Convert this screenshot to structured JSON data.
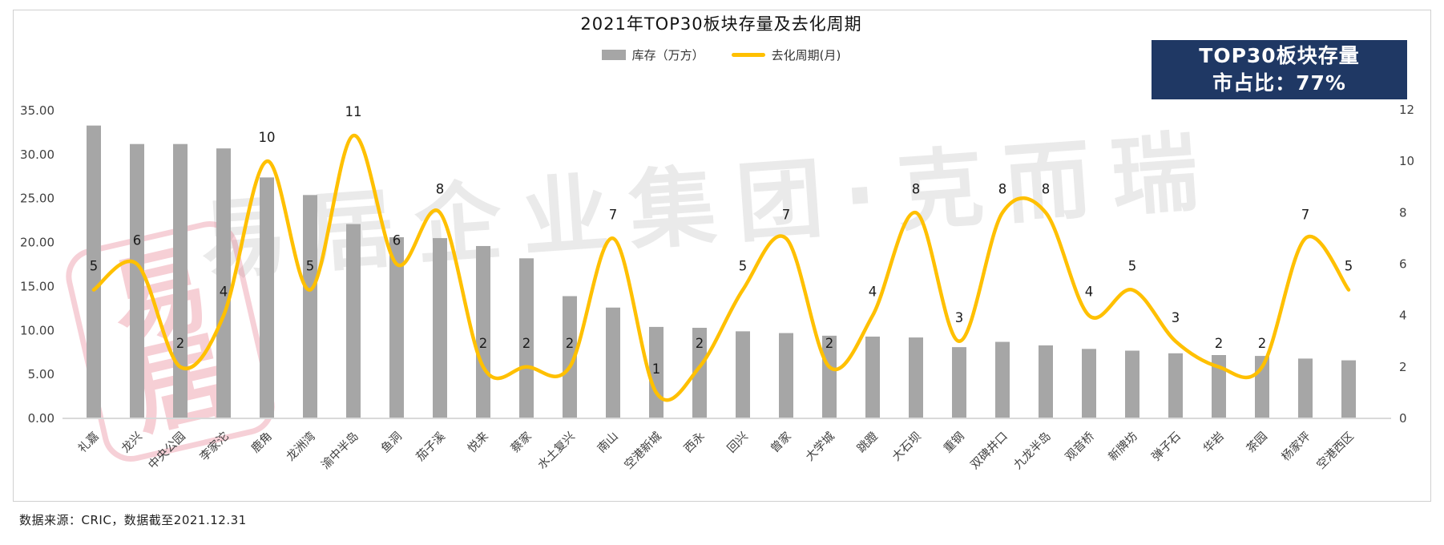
{
  "title": "2021年TOP30板块存量及去化周期",
  "legend": [
    {
      "label": "库存（万方）",
      "type": "bar",
      "color": "#A6A6A6"
    },
    {
      "label": "去化周期(月)",
      "type": "line",
      "color": "#FFC000"
    }
  ],
  "badge": {
    "line1": "TOP30板块存量",
    "line2": "市占比：77%",
    "bg": "#1F3864",
    "fg": "#FFFFFF"
  },
  "watermark": {
    "text": "易居企业集团·克而瑞",
    "seal_char1": "易",
    "seal_char2": "居"
  },
  "source_note": "数据来源：CRIC，数据截至2021.12.31",
  "colors": {
    "bar": "#A6A6A6",
    "line": "#FFC000",
    "axis_text": "#404040",
    "axis_line": "#d9d9d9",
    "data_label": "#1a1a1a"
  },
  "chart_data": {
    "type": "bar",
    "subtype": "bar+smooth-line combo, dual axis",
    "title": "2021年TOP30板块存量及去化周期",
    "categories": [
      "礼嘉",
      "龙兴",
      "中央公园",
      "李家沱",
      "鹿角",
      "龙洲湾",
      "渝中半岛",
      "鱼洞",
      "茄子溪",
      "悦来",
      "蔡家",
      "水土复兴",
      "南山",
      "空港新城",
      "西永",
      "回兴",
      "曾家",
      "大学城",
      "跳蹬",
      "大石坝",
      "重钢",
      "双碑井口",
      "九龙半岛",
      "观音桥",
      "新牌坊",
      "弹子石",
      "华岩",
      "茶园",
      "杨家坪",
      "空港西区"
    ],
    "series": [
      {
        "name": "库存（万方）",
        "type": "bar",
        "axis": "left",
        "color": "#A6A6A6",
        "values": [
          33.3,
          31.2,
          31.2,
          30.7,
          27.4,
          25.4,
          22.1,
          20.6,
          20.5,
          19.6,
          18.2,
          13.9,
          12.6,
          10.4,
          10.3,
          9.9,
          9.7,
          9.4,
          9.3,
          9.2,
          8.1,
          8.7,
          8.3,
          7.9,
          7.7,
          7.4,
          7.2,
          7.1,
          6.8,
          6.6
        ]
      },
      {
        "name": "去化周期(月)",
        "type": "line",
        "axis": "right",
        "color": "#FFC000",
        "data_labels": true,
        "values": [
          5,
          6,
          2,
          4,
          10,
          5,
          11,
          6,
          8,
          2,
          2,
          2,
          7,
          1,
          2,
          5,
          7,
          2,
          4,
          8,
          3,
          8,
          8,
          4,
          5,
          3,
          2,
          2,
          7,
          5
        ]
      }
    ],
    "left_axis": {
      "min": 0,
      "max": 35,
      "step": 5,
      "ticks": [
        "0.00",
        "5.00",
        "10.00",
        "15.00",
        "20.00",
        "25.00",
        "30.00",
        "35.00"
      ]
    },
    "right_axis": {
      "min": 0,
      "max": 12,
      "step": 2,
      "ticks": [
        "0",
        "2",
        "4",
        "6",
        "8",
        "10",
        "12"
      ]
    },
    "grid": false,
    "legend_position": "top",
    "x_label_rotation": 45
  }
}
